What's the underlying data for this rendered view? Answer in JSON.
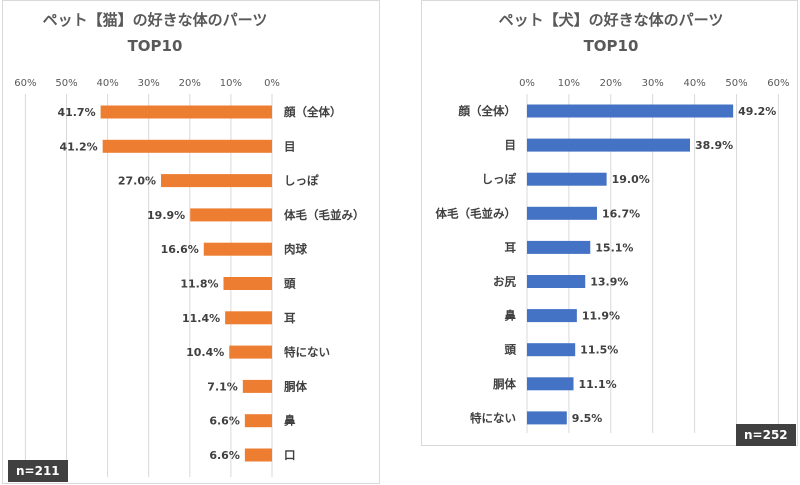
{
  "chart_data": [
    {
      "type": "bar",
      "orientation": "horizontal",
      "direction": "right-to-left",
      "title": [
        "ペット【猫】の好きな体のパーツ",
        "TOP10"
      ],
      "xlim": [
        0,
        60
      ],
      "ticks": [
        "0%",
        "10%",
        "20%",
        "30%",
        "40%",
        "50%",
        "60%"
      ],
      "categories": [
        "顔（全体）",
        "目",
        "しっぽ",
        "体毛（毛並み）",
        "肉球",
        "頭",
        "耳",
        "特にない",
        "胴体",
        "鼻",
        "口"
      ],
      "values": [
        41.7,
        41.2,
        27.0,
        19.9,
        16.6,
        11.8,
        11.4,
        10.4,
        7.1,
        6.6,
        6.6
      ],
      "value_labels": [
        "41.7%",
        "41.2%",
        "27.0%",
        "19.9%",
        "16.6%",
        "11.8%",
        "11.4%",
        "10.4%",
        "7.1%",
        "6.6%",
        "6.6%"
      ],
      "color": "#ED7D31",
      "sample_size": "n=211",
      "grid": true
    },
    {
      "type": "bar",
      "orientation": "horizontal",
      "direction": "left-to-right",
      "title": [
        "ペット【犬】の好きな体のパーツ",
        "TOP10"
      ],
      "xlim": [
        0,
        60
      ],
      "ticks": [
        "0%",
        "10%",
        "20%",
        "30%",
        "40%",
        "50%",
        "60%"
      ],
      "categories": [
        "顔（全体）",
        "目",
        "しっぽ",
        "体毛（毛並み）",
        "耳",
        "お尻",
        "鼻",
        "頭",
        "胴体",
        "特にない"
      ],
      "values": [
        49.2,
        38.9,
        19.0,
        16.7,
        15.1,
        13.9,
        11.9,
        11.5,
        11.1,
        9.5
      ],
      "value_labels": [
        "49.2%",
        "38.9%",
        "19.0%",
        "16.7%",
        "15.1%",
        "13.9%",
        "11.9%",
        "11.5%",
        "11.1%",
        "9.5%"
      ],
      "color": "#4472C4",
      "sample_size": "n=252",
      "grid": true
    }
  ]
}
